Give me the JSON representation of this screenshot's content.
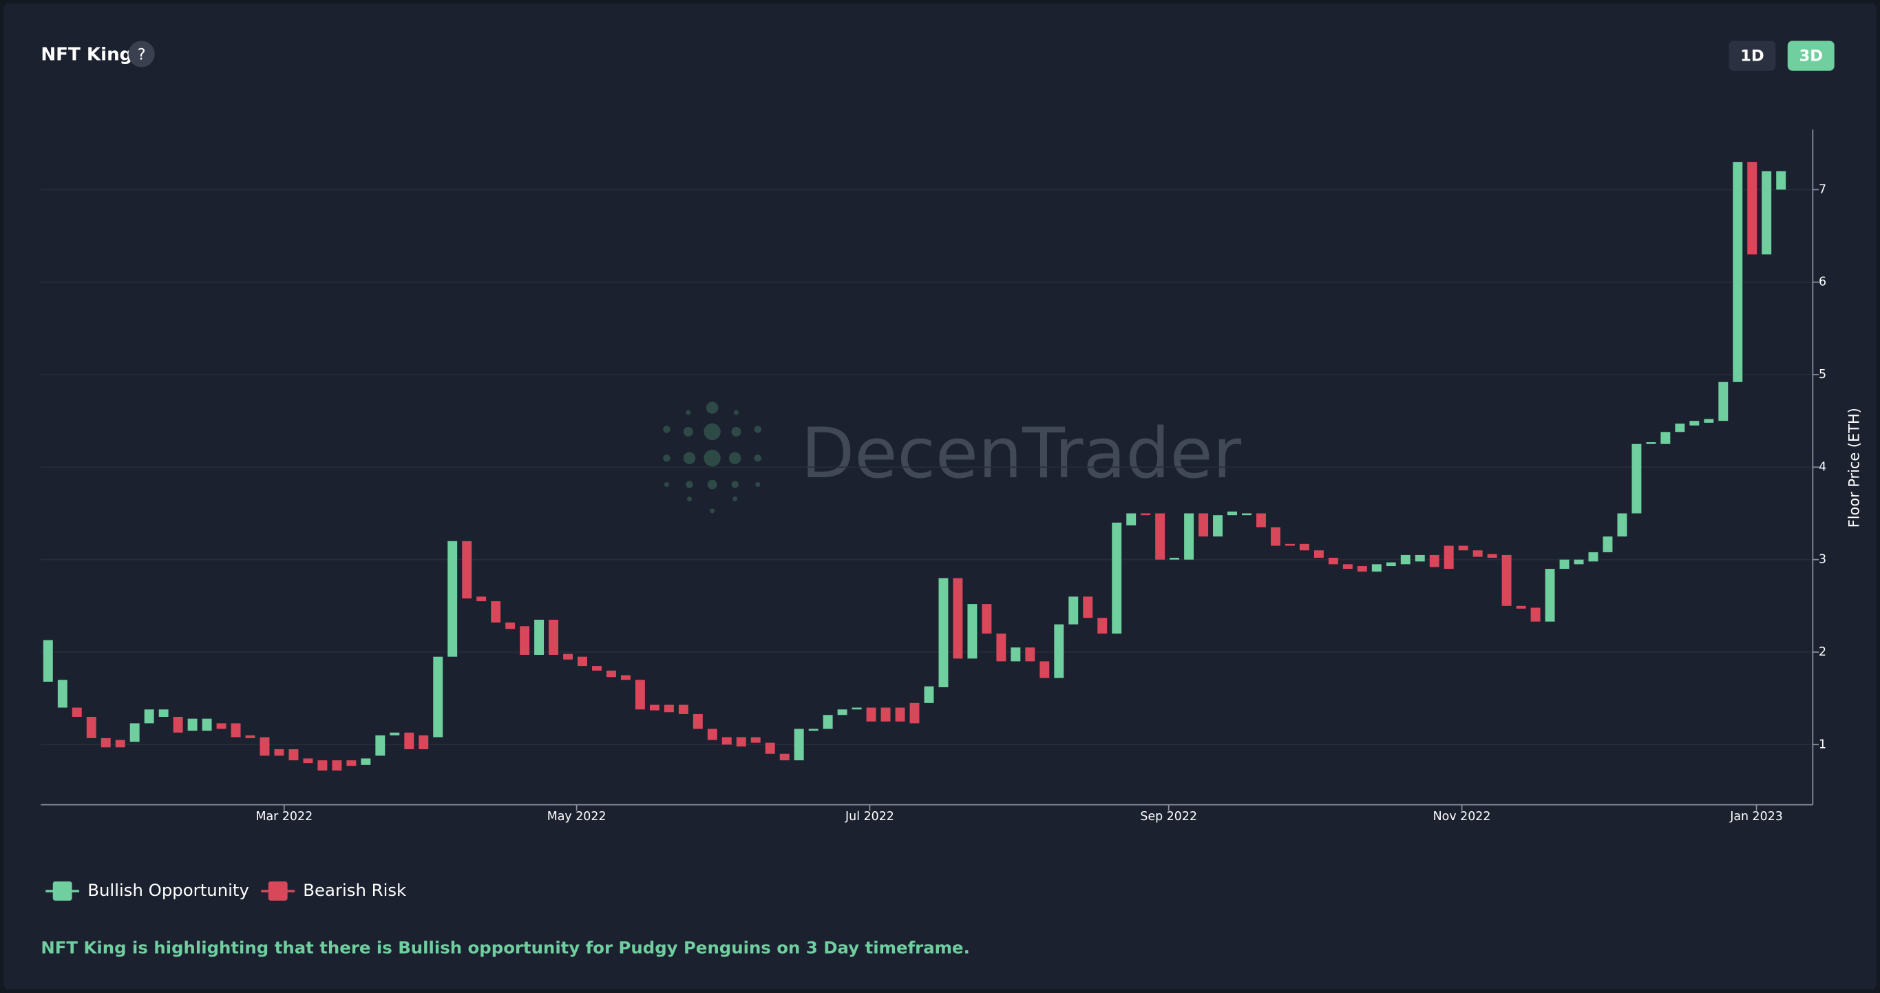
{
  "header": {
    "title": "NFT King",
    "help": "?",
    "buttons": [
      "1D",
      "3D"
    ],
    "active_button": "3D"
  },
  "watermark": "DecenTrader",
  "chart_data": {
    "type": "candlestick",
    "open": [
      1.68,
      1.4,
      1.4,
      1.3,
      1.07,
      1.05,
      1.03,
      1.23,
      1.3,
      1.3,
      1.15,
      1.15,
      1.23,
      1.23,
      1.1,
      1.08,
      0.95,
      0.95,
      0.85,
      0.83,
      0.83,
      0.83,
      0.78,
      0.88,
      1.1,
      1.13,
      1.1,
      1.08,
      1.95,
      3.2,
      2.6,
      2.55,
      2.32,
      2.28,
      1.97,
      2.35,
      1.98,
      1.95,
      1.85,
      1.8,
      1.75,
      1.7,
      1.43,
      1.43,
      1.43,
      1.33,
      1.17,
      1.08,
      1.08,
      1.08,
      1.02,
      0.9,
      0.83,
      1.15,
      1.17,
      1.32,
      1.38,
      1.4,
      1.4,
      1.4,
      1.45,
      1.45,
      1.62,
      2.8,
      1.93,
      2.52,
      2.2,
      1.9,
      2.05,
      1.9,
      1.72,
      2.3,
      2.6,
      2.37,
      2.2,
      3.37,
      3.5,
      3.5,
      3.0,
      3.0,
      3.5,
      3.25,
      3.48,
      3.48,
      3.5,
      3.35,
      3.17,
      3.17,
      3.1,
      3.02,
      2.95,
      2.93,
      2.87,
      2.93,
      2.95,
      2.98,
      3.05,
      3.15,
      3.15,
      3.1,
      3.06,
      3.05,
      2.5,
      2.48,
      2.33,
      2.9,
      2.95,
      2.98,
      3.08,
      3.25,
      3.5,
      4.25,
      4.25,
      4.38,
      4.45,
      4.48,
      4.5,
      4.92,
      7.3,
      6.3,
      7.0
    ],
    "close": [
      2.13,
      1.7,
      1.3,
      1.07,
      0.97,
      0.97,
      1.23,
      1.38,
      1.38,
      1.13,
      1.28,
      1.28,
      1.17,
      1.08,
      1.07,
      0.88,
      0.88,
      0.83,
      0.8,
      0.72,
      0.72,
      0.77,
      0.85,
      1.1,
      1.13,
      0.95,
      0.95,
      1.95,
      3.2,
      2.58,
      2.55,
      2.32,
      2.25,
      1.97,
      2.35,
      1.97,
      1.92,
      1.85,
      1.8,
      1.73,
      1.7,
      1.38,
      1.37,
      1.35,
      1.33,
      1.17,
      1.05,
      1.0,
      0.98,
      1.02,
      0.9,
      0.83,
      1.17,
      1.17,
      1.32,
      1.38,
      1.4,
      1.25,
      1.25,
      1.25,
      1.23,
      1.63,
      2.8,
      1.93,
      2.52,
      2.2,
      1.9,
      2.05,
      1.9,
      1.72,
      2.3,
      2.6,
      2.37,
      2.2,
      3.4,
      3.5,
      3.48,
      3.0,
      3.02,
      3.5,
      3.25,
      3.48,
      3.52,
      3.5,
      3.35,
      3.15,
      3.15,
      3.1,
      3.02,
      2.95,
      2.9,
      2.87,
      2.95,
      2.97,
      3.05,
      3.05,
      2.92,
      2.9,
      3.1,
      3.03,
      3.02,
      2.5,
      2.47,
      2.33,
      2.9,
      3.0,
      3.0,
      3.08,
      3.25,
      3.5,
      4.25,
      4.27,
      4.38,
      4.47,
      4.5,
      4.52,
      4.92,
      7.3,
      6.3,
      7.2,
      7.2
    ],
    "series": [
      {
        "name": "Bullish Opportunity",
        "color": "#6fcf9f"
      },
      {
        "name": "Bearish Risk",
        "color": "#d9475a"
      }
    ],
    "xlim": [
      -0.5,
      122.2
    ],
    "xticks": [
      {
        "value": 16.35,
        "label": "Mar 2022"
      },
      {
        "value": 36.6,
        "label": "May 2022"
      },
      {
        "value": 56.9,
        "label": "Jul 2022"
      },
      {
        "value": 77.6,
        "label": "Sep 2022"
      },
      {
        "value": 97.9,
        "label": "Nov 2022"
      },
      {
        "value": 118.3,
        "label": "Jan 2023"
      }
    ],
    "ylim": [
      0.35,
      7.65
    ],
    "yticks": [
      1,
      2,
      3,
      4,
      5,
      6,
      7
    ],
    "y_axis_label": "Floor Price (ETH)",
    "y_axis_side": "right",
    "grid": true
  },
  "message": "NFT King is highlighting that there is Bullish opportunity for Pudgy Penguins on 3 Day timeframe."
}
